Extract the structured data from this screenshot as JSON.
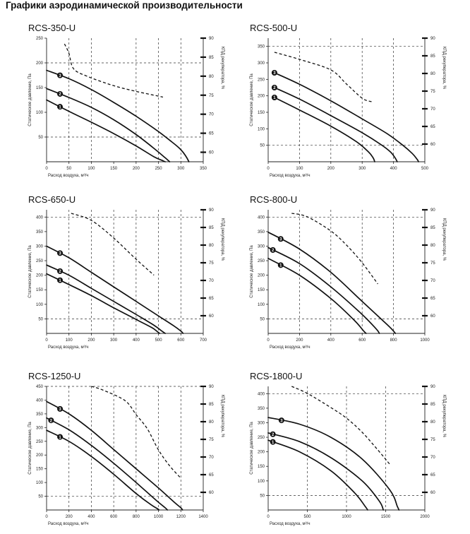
{
  "page": {
    "heading": "Графики аэродинамической производительности"
  },
  "chart_data": [
    {
      "type": "line",
      "title": "RCS-350-U",
      "xlabel": "Расход воздуха, м³/ч",
      "ylabel": "Статическое давление, Па",
      "y2label": "КПД рекуператора, %",
      "xlim": [
        0,
        350
      ],
      "ylim": [
        0,
        250
      ],
      "y2lim": [
        57.5,
        90
      ],
      "xticks": [
        0,
        50,
        100,
        150,
        200,
        250,
        300,
        350
      ],
      "yticks": [
        50,
        100,
        150,
        200,
        250
      ],
      "y2ticks": [
        60,
        65,
        70,
        75,
        80,
        85,
        90
      ],
      "grid_x": [
        50,
        100,
        200,
        250,
        300
      ],
      "grid_y": [
        50,
        200
      ],
      "series": [
        {
          "marker": "1",
          "x": [
            0,
            50,
            100,
            150,
            200,
            240,
            260,
            265
          ],
          "y": [
            125,
            102,
            80,
            57,
            32,
            10,
            2,
            0
          ]
        },
        {
          "marker": "2",
          "x": [
            0,
            50,
            100,
            150,
            200,
            240,
            265,
            275
          ],
          "y": [
            148,
            130,
            110,
            85,
            55,
            27,
            8,
            0
          ]
        },
        {
          "marker": "3",
          "x": [
            0,
            50,
            100,
            150,
            200,
            250,
            280,
            296,
            305,
            312,
            318
          ],
          "y": [
            185,
            168,
            146,
            120,
            92,
            61,
            40,
            28,
            19,
            10,
            0
          ]
        }
      ],
      "marker_x": [
        30,
        30,
        30
      ],
      "efficiency": {
        "x": [
          40,
          50,
          60,
          90,
          150,
          200,
          240,
          260
        ],
        "y": [
          88.5,
          86,
          82,
          80,
          77.5,
          76,
          75,
          74.5
        ]
      }
    },
    {
      "type": "line",
      "title": "RCS-500-U",
      "xlabel": "Расход воздуха, м³/ч",
      "ylabel": "Статическое давление, Па",
      "y2label": "КПД рекуператора, %",
      "xlim": [
        0,
        500
      ],
      "ylim": [
        0,
        375
      ],
      "y2lim": [
        55,
        90
      ],
      "xticks": [
        0,
        100,
        200,
        300,
        400,
        500
      ],
      "yticks": [
        50,
        100,
        150,
        200,
        250,
        300,
        350
      ],
      "y2ticks": [
        60,
        65,
        70,
        75,
        80,
        85,
        90
      ],
      "grid_x": [
        100,
        200,
        300,
        400
      ],
      "grid_y": [
        50,
        350
      ],
      "series": [
        {
          "marker": "1",
          "x": [
            20,
            100,
            200,
            280,
            320,
            335,
            340
          ],
          "y": [
            195,
            157,
            108,
            62,
            30,
            12,
            0
          ]
        },
        {
          "marker": "2",
          "x": [
            20,
            100,
            200,
            300,
            360,
            390,
            405,
            412
          ],
          "y": [
            225,
            190,
            140,
            88,
            52,
            30,
            12,
            0
          ]
        },
        {
          "marker": "3",
          "x": [
            20,
            100,
            200,
            300,
            380,
            430,
            460,
            475,
            480
          ],
          "y": [
            270,
            235,
            185,
            130,
            85,
            50,
            25,
            8,
            0
          ]
        }
      ],
      "marker_x": [
        20,
        20,
        20
      ],
      "efficiency": {
        "x": [
          20,
          100,
          200,
          250,
          300,
          330
        ],
        "y": [
          86,
          84,
          81,
          77,
          73,
          72
        ]
      }
    },
    {
      "type": "line",
      "title": "RCS-650-U",
      "xlabel": "Расход воздуха, м³/ч",
      "ylabel": "Статическое давление, Па",
      "y2label": "КПД рекуператора, %",
      "xlim": [
        0,
        700
      ],
      "ylim": [
        0,
        425
      ],
      "y2lim": [
        55,
        90
      ],
      "xticks": [
        0,
        100,
        200,
        300,
        400,
        500,
        600,
        700
      ],
      "yticks": [
        50,
        100,
        150,
        200,
        250,
        300,
        350,
        400
      ],
      "y2ticks": [
        60,
        65,
        70,
        75,
        80,
        85,
        90
      ],
      "grid_x": [
        100,
        200,
        300,
        400,
        500,
        600
      ],
      "grid_y": [
        50,
        400
      ],
      "series": [
        {
          "marker": "1",
          "x": [
            0,
            100,
            200,
            300,
            400,
            470,
            495,
            505
          ],
          "y": [
            205,
            168,
            130,
            88,
            48,
            20,
            6,
            0
          ]
        },
        {
          "marker": "2",
          "x": [
            0,
            100,
            200,
            300,
            400,
            480,
            515,
            530
          ],
          "y": [
            235,
            200,
            155,
            110,
            65,
            28,
            8,
            0
          ]
        },
        {
          "marker": "3",
          "x": [
            0,
            100,
            200,
            300,
            400,
            500,
            570,
            600,
            610
          ],
          "y": [
            300,
            260,
            210,
            160,
            110,
            60,
            25,
            8,
            0
          ]
        }
      ],
      "marker_x": [
        60,
        60,
        60
      ],
      "efficiency": {
        "x": [
          110,
          200,
          300,
          400,
          480
        ],
        "y": [
          89,
          87,
          82,
          76,
          71.5
        ]
      }
    },
    {
      "type": "line",
      "title": "RCS-800-U",
      "xlabel": "Расход воздуха, м³/ч",
      "ylabel": "Статическое давление, Па",
      "y2label": "КПД рекуператора, %",
      "xlim": [
        0,
        1000
      ],
      "ylim": [
        0,
        425
      ],
      "y2lim": [
        55,
        90
      ],
      "xticks": [
        0,
        200,
        400,
        600,
        800,
        1000
      ],
      "yticks": [
        50,
        100,
        150,
        200,
        250,
        300,
        350,
        400
      ],
      "y2ticks": [
        60,
        65,
        70,
        75,
        80,
        85,
        90
      ],
      "grid_x": [
        200,
        400,
        600,
        800
      ],
      "grid_y": [
        50,
        400
      ],
      "series": [
        {
          "marker": "1",
          "x": [
            0,
            200,
            400,
            550,
            610,
            625
          ],
          "y": [
            258,
            200,
            120,
            45,
            8,
            0
          ]
        },
        {
          "marker": "2",
          "x": [
            0,
            200,
            400,
            600,
            690,
            710
          ],
          "y": [
            295,
            240,
            160,
            65,
            15,
            0
          ]
        },
        {
          "marker": "3",
          "x": [
            0,
            200,
            400,
            600,
            760,
            800,
            812
          ],
          "y": [
            348,
            290,
            210,
            110,
            30,
            8,
            0
          ]
        }
      ],
      "marker_x": [
        80,
        30,
        80
      ],
      "efficiency": {
        "x": [
          150,
          250,
          400,
          500,
          600,
          700
        ],
        "y": [
          89,
          88,
          84,
          80,
          75,
          69
        ]
      }
    },
    {
      "type": "line",
      "title": "RCS-1250-U",
      "xlabel": "Расход воздуха, м³/ч",
      "ylabel": "Статическое давление, Па",
      "y2label": "КПД рекуператора, %",
      "xlim": [
        0,
        1400
      ],
      "ylim": [
        0,
        450
      ],
      "y2lim": [
        55,
        90
      ],
      "xticks": [
        0,
        200,
        400,
        600,
        800,
        1000,
        1200,
        1400
      ],
      "yticks": [
        50,
        100,
        150,
        200,
        250,
        300,
        350,
        400,
        450
      ],
      "y2ticks": [
        60,
        65,
        70,
        75,
        80,
        85,
        90
      ],
      "grid_x": [
        200,
        400,
        600,
        800,
        1000,
        1200
      ],
      "grid_y": [
        50,
        450
      ],
      "series": [
        {
          "marker": "1",
          "x": [
            0,
            200,
            400,
            600,
            800,
            930,
            990,
            1005
          ],
          "y": [
            290,
            250,
            195,
            130,
            60,
            20,
            5,
            0
          ]
        },
        {
          "marker": "2",
          "x": [
            0,
            200,
            400,
            600,
            800,
            980,
            1060,
            1080
          ],
          "y": [
            335,
            292,
            235,
            170,
            100,
            35,
            8,
            0
          ]
        },
        {
          "marker": "3",
          "x": [
            0,
            200,
            400,
            600,
            800,
            1000,
            1150,
            1200,
            1215
          ],
          "y": [
            395,
            350,
            290,
            220,
            150,
            80,
            25,
            8,
            0
          ]
        }
      ],
      "marker_x": [
        120,
        40,
        120
      ],
      "efficiency": {
        "x": [
          400,
          500,
          700,
          800,
          900,
          1000,
          1100,
          1200
        ],
        "y": [
          90,
          89,
          86,
          82,
          78,
          72,
          67.5,
          64
        ]
      }
    },
    {
      "type": "line",
      "title": "RCS-1800-U",
      "xlabel": "Расход воздуха, м³/ч",
      "ylabel": "Статическое давление, Па",
      "y2label": "КПД рекуператора, %",
      "xlim": [
        0,
        2000
      ],
      "ylim": [
        0,
        425
      ],
      "y2lim": [
        55,
        90
      ],
      "xticks": [
        0,
        500,
        1000,
        1500,
        2000
      ],
      "yticks": [
        50,
        100,
        150,
        200,
        250,
        300,
        350,
        400
      ],
      "y2ticks": [
        60,
        65,
        70,
        75,
        80,
        85,
        90
      ],
      "grid_x": [
        500,
        1000,
        1500
      ],
      "grid_y": [
        50,
        400
      ],
      "series": [
        {
          "marker": "1",
          "x": [
            0,
            400,
            800,
            1100,
            1240,
            1270
          ],
          "y": [
            240,
            200,
            135,
            60,
            12,
            0
          ]
        },
        {
          "marker": "2",
          "x": [
            0,
            400,
            800,
            1200,
            1420,
            1470
          ],
          "y": [
            265,
            235,
            180,
            100,
            30,
            0
          ]
        },
        {
          "marker": "3",
          "x": [
            0,
            400,
            800,
            1200,
            1550,
            1650,
            1670
          ],
          "y": [
            318,
            295,
            250,
            175,
            70,
            12,
            0
          ]
        }
      ],
      "marker_x": [
        60,
        60,
        170
      ],
      "efficiency": {
        "x": [
          300,
          500,
          800,
          1000,
          1200,
          1400,
          1550
        ],
        "y": [
          90,
          88,
          84,
          81,
          77,
          72,
          68
        ]
      }
    }
  ]
}
